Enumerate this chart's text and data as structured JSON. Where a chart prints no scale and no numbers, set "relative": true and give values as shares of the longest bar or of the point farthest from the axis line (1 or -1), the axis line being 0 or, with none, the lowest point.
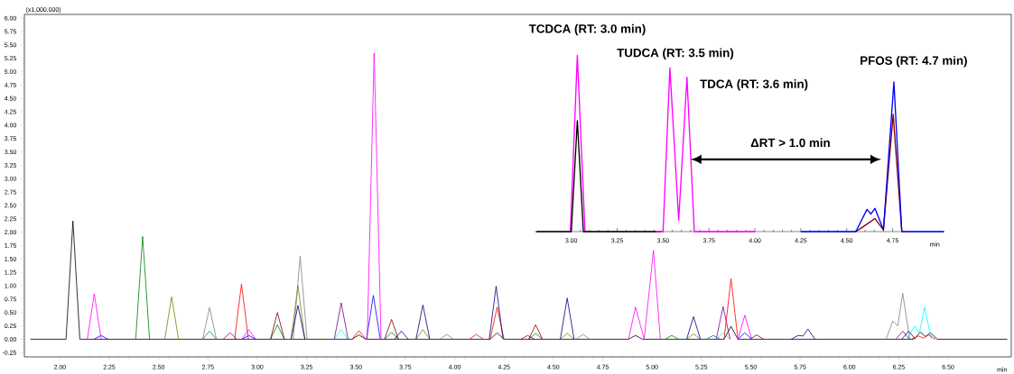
{
  "chart_data": [
    {
      "type": "line",
      "xlabel": "min",
      "ylabel": "(x1,000,000)",
      "xlim": [
        1.82,
        6.82
      ],
      "ylim": [
        -0.33,
        6.07
      ],
      "xticks": [
        {
          "value": 2,
          "label": "2.00"
        },
        {
          "value": 2.25,
          "label": "2.25"
        },
        {
          "value": 2.5,
          "label": "2.50"
        },
        {
          "value": 2.75,
          "label": "2.75"
        },
        {
          "value": 3,
          "label": "3.00"
        },
        {
          "value": 3.25,
          "label": "3.25"
        },
        {
          "value": 3.5,
          "label": "3.50"
        },
        {
          "value": 3.75,
          "label": "3.75"
        },
        {
          "value": 4,
          "label": "4.00"
        },
        {
          "value": 4.25,
          "label": "4.25"
        },
        {
          "value": 4.5,
          "label": "4.50"
        },
        {
          "value": 4.75,
          "label": "4.75"
        },
        {
          "value": 5,
          "label": "5.00"
        },
        {
          "value": 5.25,
          "label": "5.25"
        },
        {
          "value": 5.5,
          "label": "5.50"
        },
        {
          "value": 5.75,
          "label": "5.75"
        },
        {
          "value": 6,
          "label": "6.00"
        },
        {
          "value": 6.25,
          "label": "6.25"
        },
        {
          "value": 6.5,
          "label": "6.50"
        }
      ],
      "yticks": [
        {
          "value": -0.25,
          "label": "-0.25"
        },
        {
          "value": 0,
          "label": "0.00"
        },
        {
          "value": 0.25,
          "label": "0.25"
        },
        {
          "value": 0.5,
          "label": "0.50"
        },
        {
          "value": 0.75,
          "label": "0.75"
        },
        {
          "value": 1,
          "label": "1.00"
        },
        {
          "value": 1.25,
          "label": "1.25"
        },
        {
          "value": 1.5,
          "label": "1.50"
        },
        {
          "value": 1.75,
          "label": "1.75"
        },
        {
          "value": 2,
          "label": "2.00"
        },
        {
          "value": 2.25,
          "label": "2.25"
        },
        {
          "value": 2.5,
          "label": "2.50"
        },
        {
          "value": 2.75,
          "label": "2.75"
        },
        {
          "value": 3,
          "label": "3.00"
        },
        {
          "value": 3.25,
          "label": "3.25"
        },
        {
          "value": 3.5,
          "label": "3.50"
        },
        {
          "value": 3.75,
          "label": "3.75"
        },
        {
          "value": 4,
          "label": "4.00"
        },
        {
          "value": 4.25,
          "label": "4.25"
        },
        {
          "value": 4.5,
          "label": "4.50"
        },
        {
          "value": 4.75,
          "label": "4.75"
        },
        {
          "value": 5,
          "label": "5.00"
        },
        {
          "value": 5.25,
          "label": "5.25"
        },
        {
          "value": 5.5,
          "label": "5.50"
        },
        {
          "value": 5.75,
          "label": "5.75"
        },
        {
          "value": 6,
          "label": "6.00"
        }
      ],
      "series": [
        {
          "color": "#000000",
          "x": [
            1.85,
            2.031,
            2.066,
            2.101,
            3.48,
            3.515,
            3.55,
            4.18,
            4.215,
            4.25,
            4.881,
            4.916,
            4.951,
            5.365,
            5.4,
            5.435,
            6.325,
            6.36,
            6.385,
            6.41,
            6.445,
            6.8
          ],
          "values": [
            0,
            0,
            2.21,
            0,
            0,
            0.08,
            0,
            0,
            0.12,
            0,
            0,
            0.07,
            0,
            0,
            0.24,
            0,
            0,
            0.13,
            0.05,
            0.12,
            0,
            0
          ]
        },
        {
          "color": "#008080",
          "x": [
            2.723,
            2.758,
            2.793,
            4.2,
            5.275,
            5.31,
            5.345
          ],
          "values": [
            0,
            0.15,
            0,
            null,
            0,
            0.07,
            0
          ]
        },
        {
          "color": "#00ffff",
          "x": [
            3.39,
            3.425,
            3.46,
            4.4,
            5.325,
            5.36,
            5.395,
            5.8,
            6.295,
            6.33,
            6.355,
            6.38,
            6.415
          ],
          "values": [
            0,
            0.18,
            0,
            null,
            0,
            0.12,
            0,
            null,
            0,
            0.25,
            0.12,
            0.6,
            0
          ]
        },
        {
          "color": "#808000",
          "x": [
            2.531,
            2.566,
            2.601,
            2.9,
            3.171,
            3.206,
            3.241,
            3.5,
            3.804,
            3.839,
            3.874,
            4.2,
            4.535,
            4.57,
            4.605,
            4.9,
            5.175,
            5.21,
            5.245
          ],
          "values": [
            0,
            0.79,
            0,
            null,
            0,
            1.0,
            0,
            null,
            0,
            0.18,
            0,
            null,
            0,
            0.11,
            0,
            null,
            0,
            0.1,
            0
          ]
        },
        {
          "color": "#008000",
          "x": [
            2.384,
            2.419,
            2.454,
            2.8,
            3.067,
            3.102,
            3.137,
            3.4,
            3.645,
            3.68,
            3.715,
            4.0,
            4.375,
            4.41,
            4.445,
            4.8,
            5.065,
            5.1,
            5.135
          ],
          "values": [
            0,
            1.92,
            0,
            null,
            0,
            0.27,
            0,
            null,
            0,
            0.13,
            0,
            null,
            0,
            0.11,
            0,
            null,
            0,
            0.07,
            0
          ]
        },
        {
          "color": "#808080",
          "x": [
            2.723,
            2.758,
            2.793,
            3.0,
            3.182,
            3.217,
            3.252,
            3.6,
            3.925,
            3.96,
            3.995,
            4.3,
            4.615,
            4.65,
            4.685,
            5.4,
            6.185,
            6.22,
            6.245,
            6.27,
            6.305
          ],
          "values": [
            0,
            0.59,
            0,
            null,
            0,
            1.55,
            0,
            null,
            0,
            0.09,
            0,
            null,
            0,
            0.09,
            0,
            null,
            0,
            0.34,
            0.25,
            0.86,
            0
          ]
        },
        {
          "color": "#800000",
          "x": [
            3.067,
            3.102,
            3.137,
            3.4,
            3.645,
            3.68,
            3.715,
            4.0,
            4.375,
            4.41,
            4.445,
            5.0,
            5.495,
            5.53,
            5.565
          ],
          "values": [
            0,
            0.5,
            0,
            null,
            0,
            0.37,
            0,
            null,
            0,
            0.27,
            0,
            null,
            0,
            0.08,
            0
          ]
        },
        {
          "color": "#800080",
          "x": [
            2.827,
            2.862,
            2.897,
            3.1,
            3.39,
            3.425,
            3.46,
            3.9,
            4.335,
            4.37,
            4.405,
            4.9,
            5.325,
            5.36,
            5.395,
            5.8,
            6.235,
            6.27,
            6.305
          ],
          "values": [
            0,
            0.12,
            0,
            null,
            0,
            0.68,
            0,
            null,
            0,
            0.07,
            0,
            null,
            0,
            0.61,
            0,
            null,
            0,
            0.15,
            0
          ]
        },
        {
          "color": "#ff0000",
          "x": [
            2.885,
            2.92,
            2.955,
            3.2,
            3.48,
            3.515,
            3.55,
            3.8,
            4.075,
            4.11,
            4.145,
            4.16,
            4.18,
            4.215,
            4.25,
            4.5,
            4.795,
            4.83,
            4.865,
            5.1,
            5.365,
            5.4,
            5.435,
            5.9,
            6.315,
            6.35,
            6.375,
            6.4,
            6.435
          ],
          "values": [
            0,
            1.03,
            0,
            null,
            0,
            0.16,
            0,
            null,
            0,
            0.09,
            0,
            null,
            0,
            0.6,
            0,
            null,
            null,
            null,
            null,
            null,
            0,
            1.13,
            0,
            null,
            0,
            0.06,
            0.02,
            0.08,
            0
          ]
        },
        {
          "color": "#000080",
          "x": [
            3.171,
            3.206,
            3.241,
            3.5,
            3.695,
            3.73,
            3.765,
            3.78,
            3.804,
            3.839,
            3.874,
            4.0,
            4.175,
            4.21,
            4.245,
            4.4,
            4.535,
            4.57,
            4.605,
            4.9,
            5.175,
            5.21,
            5.245,
            5.5,
            5.705,
            5.74,
            5.765,
            5.79,
            5.825,
            6.0,
            6.265,
            6.3,
            6.335
          ],
          "values": [
            0,
            0.63,
            0,
            null,
            0,
            0.15,
            0,
            null,
            0,
            0.64,
            0,
            null,
            0,
            0.99,
            0,
            null,
            0,
            0.77,
            0,
            null,
            0,
            0.42,
            0,
            null,
            0,
            0.07,
            0.06,
            0.19,
            0,
            null,
            0,
            0.15,
            0
          ]
        },
        {
          "color": "#0000ff",
          "x": [
            2.173,
            2.208,
            2.243,
            2.6,
            2.922,
            2.957,
            2.992,
            3.3,
            3.553,
            3.588,
            3.623,
            4.5,
            5.435,
            5.47,
            5.505
          ],
          "values": [
            0,
            0.07,
            0,
            null,
            0,
            0.07,
            0,
            null,
            0,
            0.82,
            0,
            null,
            0,
            0.12,
            0
          ]
        },
        {
          "color": "#ff00ff",
          "x": [
            2.139,
            2.174,
            2.209,
            2.6,
            2.922,
            2.957,
            2.992,
            3.3,
            3.557,
            3.592,
            3.627,
            4.3,
            4.881,
            4.916,
            4.96,
            5.007,
            5.042,
            5.2,
            5.435,
            5.47,
            5.505
          ],
          "values": [
            0,
            0.85,
            0,
            null,
            0,
            0.18,
            0,
            null,
            0,
            5.35,
            0,
            null,
            0,
            0.6,
            0,
            1.66,
            0,
            null,
            0,
            0.45,
            0
          ]
        }
      ]
    },
    {
      "type": "line",
      "relative": true,
      "xlabel": "min",
      "xlim": [
        2.8,
        5.03
      ],
      "xticks": [
        {
          "value": 3,
          "label": "3.00"
        },
        {
          "value": 3.25,
          "label": "3.25"
        },
        {
          "value": 3.5,
          "label": "3.50"
        },
        {
          "value": 3.75,
          "label": "3.75"
        },
        {
          "value": 4,
          "label": "4.00"
        },
        {
          "value": 4.25,
          "label": "4.25"
        },
        {
          "value": 4.5,
          "label": "4.50"
        },
        {
          "value": 4.75,
          "label": "4.75"
        }
      ],
      "series": [
        {
          "color": "#ff00ff",
          "x": [
            2.995,
            3.033,
            3.075
          ],
          "values": [
            0,
            1.0,
            0
          ]
        },
        {
          "color": "#000000",
          "x": [
            2.81,
            3.0,
            3.033,
            3.066,
            3.49
          ],
          "values": [
            0,
            0,
            0.63,
            0,
            0
          ]
        },
        {
          "color": "#ff00ff",
          "x": [
            3.46,
            3.5,
            3.537,
            3.585,
            3.63,
            3.67,
            4.0
          ],
          "values": [
            0,
            0,
            0.93,
            0.064,
            0.876,
            0,
            0
          ]
        },
        {
          "color": "#800000",
          "x": [
            4.55,
            4.6,
            4.654,
            4.7,
            4.753,
            4.8
          ],
          "values": [
            0,
            0.035,
            0.074,
            0.01,
            0.666,
            0
          ]
        },
        {
          "color": "#0000ff",
          "x": [
            4.25,
            4.55,
            4.61,
            4.632,
            4.654,
            4.7,
            4.757,
            4.8,
            5.03
          ],
          "values": [
            0,
            0,
            0.126,
            0.1,
            0.132,
            0.01,
            0.85,
            0,
            0
          ]
        }
      ],
      "annotations": [
        {
          "text": "TCDCA (RT: 3.0 min)",
          "x": 3.033,
          "y": 1.0
        },
        {
          "text": "TUDCA (RT: 3.5 min)",
          "x": 3.537,
          "y": 0.93
        },
        {
          "text": "TDCA (RT: 3.6 min)",
          "x": 3.63,
          "y": 0.876
        },
        {
          "text": "PFOS (RT: 4.7 min)",
          "x": 4.757,
          "y": 0.85
        },
        "ΔRT > 1.0 min"
      ]
    }
  ]
}
